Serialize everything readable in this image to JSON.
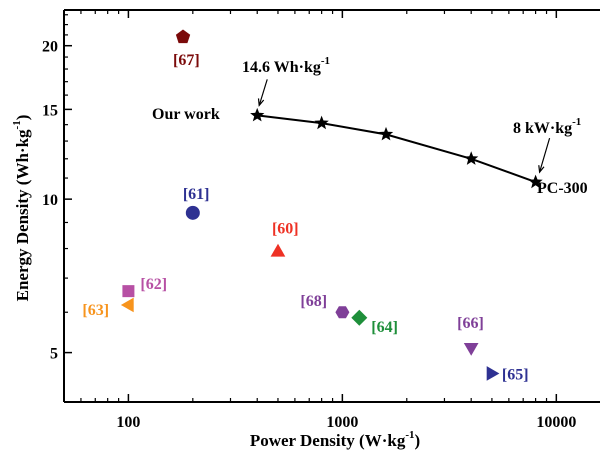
{
  "chart_data": {
    "type": "scatter",
    "xlabel": "Power Density (W·kg",
    "xlabel_sup": "-1",
    "xlabel_end": ")",
    "ylabel": "Energy Density (Wh·kg",
    "ylabel_sup": "-1",
    "ylabel_end": ")",
    "x_scale": "log",
    "y_scale": "log",
    "xlim": [
      50,
      16000
    ],
    "ylim": [
      4.0,
      23.5
    ],
    "x_ticks": [
      {
        "value": 100,
        "label": "100"
      },
      {
        "value": 1000,
        "label": "1000"
      },
      {
        "value": 10000,
        "label": "10000"
      }
    ],
    "y_ticks": [
      {
        "value": 5,
        "label": "5"
      },
      {
        "value": 10,
        "label": "10"
      },
      {
        "value": 15,
        "label": "15"
      },
      {
        "value": 20,
        "label": "20"
      }
    ],
    "grid": false,
    "series": [
      {
        "name": "Our work",
        "marker": "star",
        "color": "#000000",
        "x": [
          400,
          800,
          1600,
          4000,
          8000
        ],
        "y": [
          14.6,
          14.1,
          13.4,
          12.0,
          10.8
        ]
      }
    ],
    "references": [
      {
        "label": "[67]",
        "x": 180,
        "y": 20.8,
        "marker": "pentagon",
        "color": "#7b0a0a"
      },
      {
        "label": "[61]",
        "x": 200,
        "y": 9.4,
        "marker": "circle",
        "color": "#2e3192"
      },
      {
        "label": "[60]",
        "x": 500,
        "y": 7.9,
        "marker": "triangle-up",
        "color": "#ee3124"
      },
      {
        "label": "[62]",
        "x": 100,
        "y": 6.6,
        "marker": "square",
        "color": "#b750a4"
      },
      {
        "label": "[63]",
        "x": 100,
        "y": 6.2,
        "marker": "triangle-left",
        "color": "#f7941d"
      },
      {
        "label": "[68]",
        "x": 1000,
        "y": 6.0,
        "marker": "hexagon",
        "color": "#7f3f98"
      },
      {
        "label": "[64]",
        "x": 1200,
        "y": 5.85,
        "marker": "diamond",
        "color": "#1e8f3a"
      },
      {
        "label": "[66]",
        "x": 4000,
        "y": 5.1,
        "marker": "triangle-down",
        "color": "#7f3f98"
      },
      {
        "label": "[65]",
        "x": 5000,
        "y": 4.55,
        "marker": "triangle-right",
        "color": "#2e3192"
      }
    ],
    "annotations": [
      {
        "text": "14.6 Wh·kg",
        "sup": "-1"
      },
      {
        "text": "Our work"
      },
      {
        "text": "8 kW·kg",
        "sup": "-1"
      },
      {
        "text": "PC-300"
      }
    ]
  }
}
